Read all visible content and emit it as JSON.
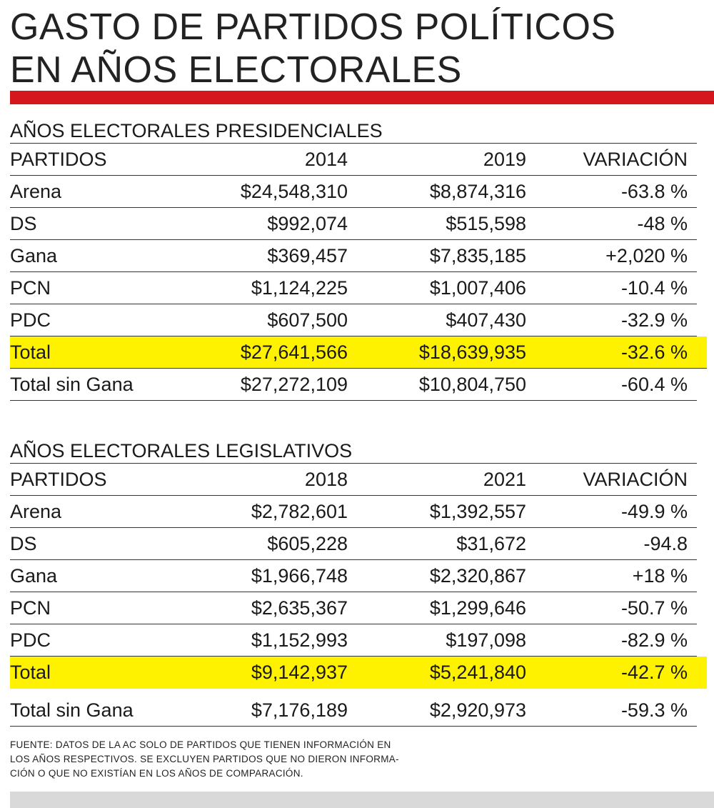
{
  "title": {
    "line1": "GASTO DE PARTIDOS POLÍTICOS",
    "line2": "EN AÑOS ELECTORALES"
  },
  "colors": {
    "accent_red": "#d6161d",
    "highlight_yellow": "#fff200",
    "footer_grey": "#d9d9d9"
  },
  "chart_data": [
    {
      "type": "table",
      "title": "AÑOS ELECTORALES PRESIDENCIALES",
      "columns": [
        "PARTIDOS",
        "2014",
        "2019",
        "VARIACIÓN"
      ],
      "rows": [
        [
          "Arena",
          "$24,548,310",
          "$8,874,316",
          "-63.8 %"
        ],
        [
          "DS",
          "$992,074",
          "$515,598",
          "-48 %"
        ],
        [
          "Gana",
          "$369,457",
          "$7,835,185",
          "+2,020 %"
        ],
        [
          "PCN",
          "$1,124,225",
          "$1,007,406",
          "-10.4 %"
        ],
        [
          "PDC",
          "$607,500",
          "$407,430",
          "-32.9 %"
        ],
        [
          "Total",
          "$27,641,566",
          "$18,639,935",
          "-32.6 %"
        ],
        [
          "Total sin Gana",
          "$27,272,109",
          "$10,804,750",
          "-60.4 %"
        ]
      ],
      "highlighted_row": "Total"
    },
    {
      "type": "table",
      "title": "AÑOS ELECTORALES LEGISLATIVOS",
      "columns": [
        "PARTIDOS",
        "2018",
        "2021",
        "VARIACIÓN"
      ],
      "rows": [
        [
          "Arena",
          "$2,782,601",
          "$1,392,557",
          "-49.9 %"
        ],
        [
          "DS",
          "$605,228",
          "$31,672",
          "-94.8"
        ],
        [
          "Gana",
          "$1,966,748",
          "$2,320,867",
          "+18 %"
        ],
        [
          "PCN",
          "$2,635,367",
          "$1,299,646",
          "-50.7 %"
        ],
        [
          "PDC",
          "$1,152,993",
          "$197,098",
          "-82.9 %"
        ],
        [
          "Total",
          "$9,142,937",
          "$5,241,840",
          "-42.7 %"
        ],
        [
          "Total sin Gana",
          "$7,176,189",
          "$2,920,973",
          "-59.3 %"
        ]
      ],
      "highlighted_row": "Total"
    }
  ],
  "source": {
    "line1": "FUENTE: DATOS DE LA AC SOLO DE PARTIDOS QUE TIENEN INFORMACIÓN EN",
    "line2": "LOS AÑOS RESPECTIVOS. SE EXCLUYEN PARTIDOS QUE NO DIERON INFORMA-",
    "line3": "CIÓN O QUE NO EXISTÍAN EN LOS AÑOS DE COMPARACIÓN."
  }
}
